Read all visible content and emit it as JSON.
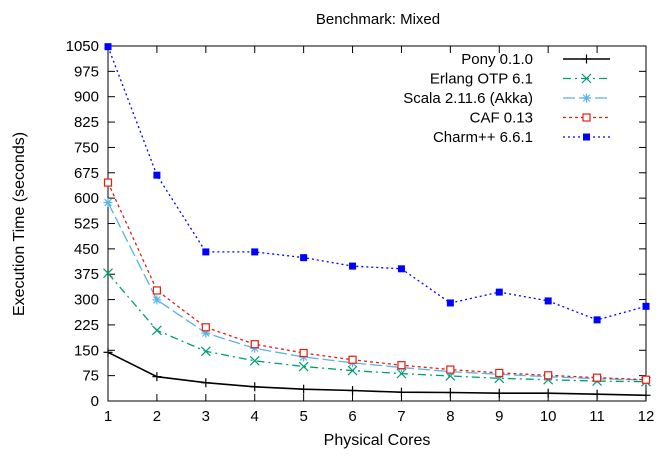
{
  "chart_data": {
    "type": "line",
    "title": "Benchmark: Mixed",
    "xlabel": "Physical Cores",
    "ylabel": "Execution Time (seconds)",
    "xlim": [
      1,
      12
    ],
    "ylim": [
      0,
      1050
    ],
    "x_ticks": [
      1,
      2,
      3,
      4,
      5,
      6,
      7,
      8,
      9,
      10,
      11,
      12
    ],
    "y_ticks": [
      0,
      75,
      150,
      225,
      300,
      375,
      450,
      525,
      600,
      675,
      750,
      825,
      900,
      975,
      1050
    ],
    "grid": false,
    "legend_position": "top-right",
    "x": [
      1,
      2,
      3,
      4,
      5,
      6,
      7,
      8,
      9,
      10,
      11,
      12
    ],
    "series": [
      {
        "name": "Pony 0.1.0",
        "color": "#000000",
        "marker": "plus",
        "dash": "solid",
        "values": [
          144,
          72,
          54,
          42,
          35,
          31,
          26,
          25,
          23,
          23,
          20,
          17
        ]
      },
      {
        "name": "Erlang OTP 6.1",
        "color": "#009e73",
        "marker": "cross",
        "dash": "dash-dot",
        "values": [
          378,
          209,
          147,
          119,
          102,
          90,
          81,
          74,
          67,
          63,
          59,
          57
        ]
      },
      {
        "name": "Scala 2.11.6 (Akka)",
        "color": "#56b4e9",
        "marker": "star",
        "dash": "long-dash",
        "values": [
          587,
          299,
          201,
          156,
          130,
          113,
          99,
          87,
          79,
          72,
          66,
          62
        ]
      },
      {
        "name": "CAF 0.13",
        "color": "#e51e10",
        "marker": "open-square",
        "dash": "dotted",
        "values": [
          646,
          327,
          218,
          168,
          142,
          122,
          106,
          93,
          83,
          76,
          69,
          63
        ]
      },
      {
        "name": "Charm++ 6.6.1",
        "color": "#0000ff",
        "marker": "filled-square",
        "dash": "fine-dotted",
        "values": [
          1048,
          668,
          441,
          441,
          424,
          399,
          391,
          290,
          322,
          296,
          240,
          280
        ]
      }
    ]
  }
}
